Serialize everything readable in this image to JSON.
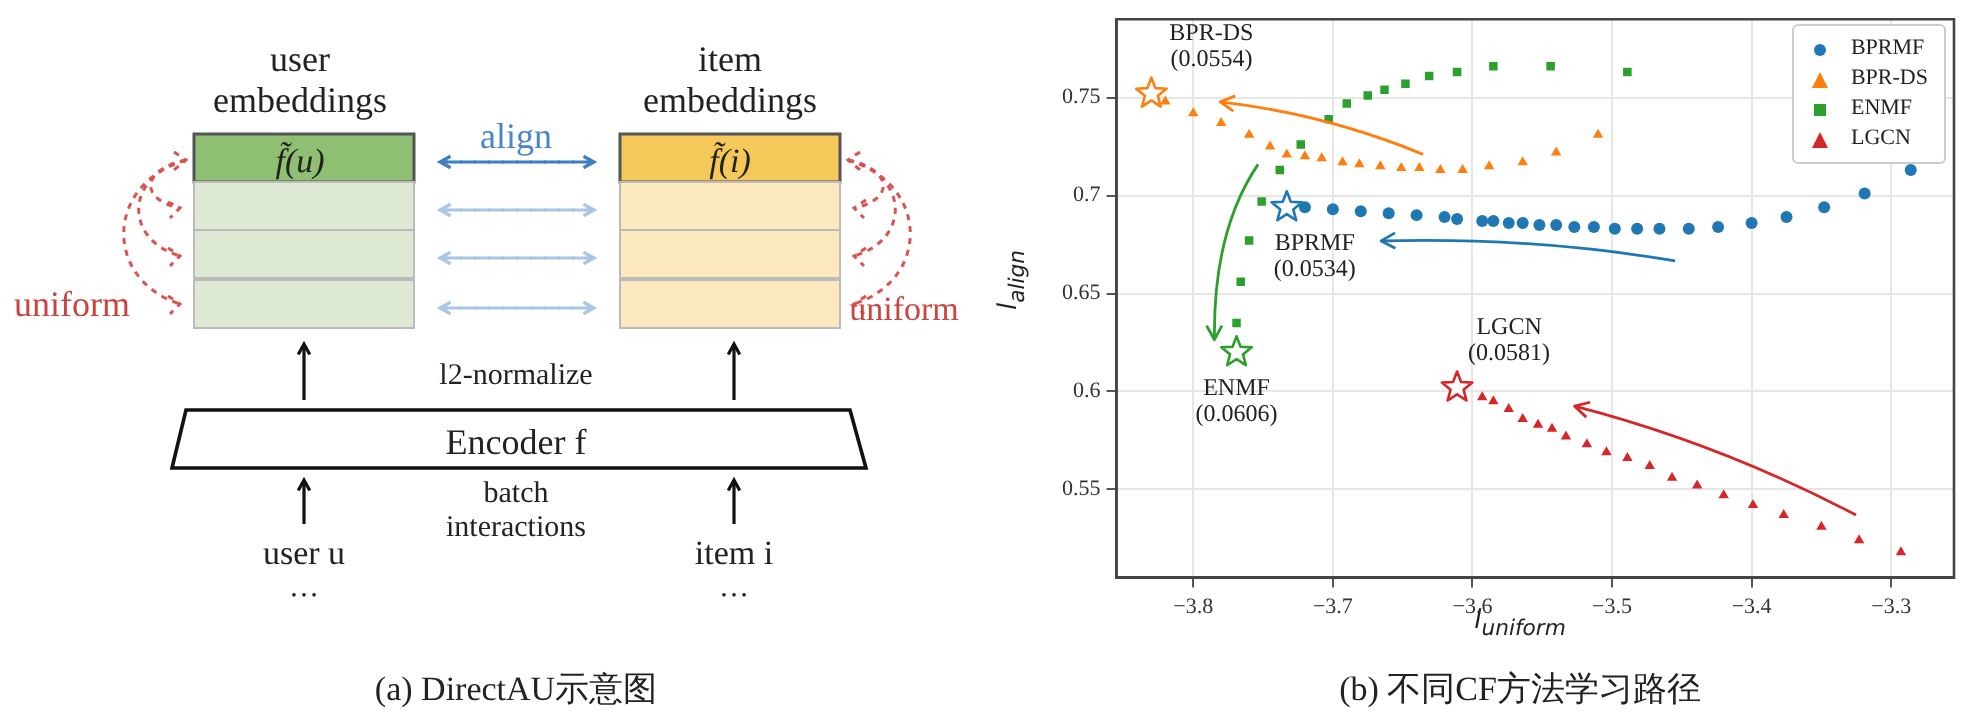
{
  "chart_data": [
    {
      "type": "other",
      "title": "(a) DirectAU示意图",
      "annotations": [
        "user\nembeddings",
        "item\nembeddings",
        "f̃(u)",
        "f̃(i)",
        "align",
        "uniform",
        "uniform",
        "l2-normalize",
        "Encoder f",
        "user u",
        "batch\ninteractions",
        "item i",
        "…",
        "…"
      ]
    },
    {
      "type": "scatter",
      "title": "(b) 不同CF方法学习路径",
      "xlabel": "l$_{uniform}$",
      "ylabel": "l$_{align}$",
      "xlim": [
        -3.855,
        -3.255
      ],
      "ylim": [
        0.505,
        0.79
      ],
      "xticks": [
        {
          "value": -3.8,
          "label": "−3.8"
        },
        {
          "value": -3.7,
          "label": "−3.7"
        },
        {
          "value": -3.6,
          "label": "−3.6"
        },
        {
          "value": -3.5,
          "label": "−3.5"
        },
        {
          "value": -3.4,
          "label": "−3.4"
        },
        {
          "value": -3.3,
          "label": "−3.3"
        }
      ],
      "yticks": [
        0.55,
        0.6,
        0.65,
        0.7,
        0.75
      ],
      "grid": true,
      "legend": "top right",
      "series": [
        {
          "name": "BPRMF",
          "color": "#1f77b4",
          "marker": "circle",
          "x": [
            -3.72,
            -3.7,
            -3.68,
            -3.66,
            -3.64,
            -3.62,
            -3.611,
            -3.593,
            -3.585,
            -3.574,
            -3.564,
            -3.552,
            -3.54,
            -3.527,
            -3.513,
            -3.498,
            -3.482,
            -3.466,
            -3.445,
            -3.424,
            -3.4,
            -3.375,
            -3.348,
            -3.319,
            -3.286
          ],
          "values": [
            0.694,
            0.693,
            0.692,
            0.691,
            0.69,
            0.689,
            0.688,
            0.687,
            0.687,
            0.686,
            0.686,
            0.685,
            0.685,
            0.684,
            0.684,
            0.683,
            0.683,
            0.683,
            0.683,
            0.684,
            0.686,
            0.689,
            0.694,
            0.701,
            0.713
          ]
        },
        {
          "name": "BPR-DS",
          "color": "#ff7f0e",
          "marker": "triangle",
          "x": [
            -3.82,
            -3.8,
            -3.78,
            -3.76,
            -3.745,
            -3.733,
            -3.72,
            -3.708,
            -3.693,
            -3.681,
            -3.666,
            -3.651,
            -3.638,
            -3.623,
            -3.607,
            -3.588,
            -3.564,
            -3.54,
            -3.51
          ],
          "values": [
            0.748,
            0.742,
            0.737,
            0.731,
            0.725,
            0.721,
            0.72,
            0.719,
            0.717,
            0.716,
            0.715,
            0.714,
            0.714,
            0.713,
            0.713,
            0.715,
            0.717,
            0.722,
            0.731
          ]
        },
        {
          "name": "ENMF",
          "color": "#2ca02c",
          "marker": "square",
          "x": [
            -3.769,
            -3.766,
            -3.76,
            -3.751,
            -3.738,
            -3.723,
            -3.703,
            -3.69,
            -3.675,
            -3.663,
            -3.648,
            -3.631,
            -3.611,
            -3.585,
            -3.544,
            -3.489
          ],
          "values": [
            0.635,
            0.656,
            0.677,
            0.697,
            0.713,
            0.726,
            0.739,
            0.747,
            0.751,
            0.754,
            0.757,
            0.761,
            0.763,
            0.766,
            0.766,
            0.763
          ]
        },
        {
          "color": "#1f77b4",
          "marker": "star",
          "x": [
            -3.733
          ],
          "values": [
            0.694
          ]
        },
        {
          "color": "#ff7f0e",
          "marker": "star",
          "x": [
            -3.83
          ],
          "values": [
            0.752
          ]
        },
        {
          "color": "#2ca02c",
          "marker": "star",
          "x": [
            -3.769
          ],
          "values": [
            0.62
          ]
        },
        {
          "color": "#d62728",
          "marker": "star",
          "x": [
            -3.611
          ],
          "values": [
            0.602
          ]
        },
        {
          "name": "LGCN",
          "color": "#d62728",
          "marker": "triangle",
          "x": [
            -3.593,
            -3.585,
            -3.574,
            -3.564,
            -3.553,
            -3.543,
            -3.533,
            -3.518,
            -3.504,
            -3.489,
            -3.473,
            -3.457,
            -3.439,
            -3.42,
            -3.399,
            -3.377,
            -3.35,
            -3.323,
            -3.293
          ],
          "values": [
            0.597,
            0.595,
            0.591,
            0.586,
            0.583,
            0.581,
            0.577,
            0.573,
            0.569,
            0.566,
            0.562,
            0.556,
            0.552,
            0.547,
            0.542,
            0.537,
            0.531,
            0.524,
            0.518
          ]
        }
      ],
      "annotations": [
        {
          "text": "BPR-DS\n(0.0554)",
          "x": -3.83,
          "y": 0.752
        },
        {
          "text": "BPRMF\n(0.0534)",
          "x": -3.733,
          "y": 0.694
        },
        {
          "text": "ENMF\n(0.0606)",
          "x": -3.769,
          "y": 0.62
        },
        {
          "text": "LGCN\n(0.0581)",
          "x": -3.611,
          "y": 0.602
        }
      ]
    }
  ]
}
